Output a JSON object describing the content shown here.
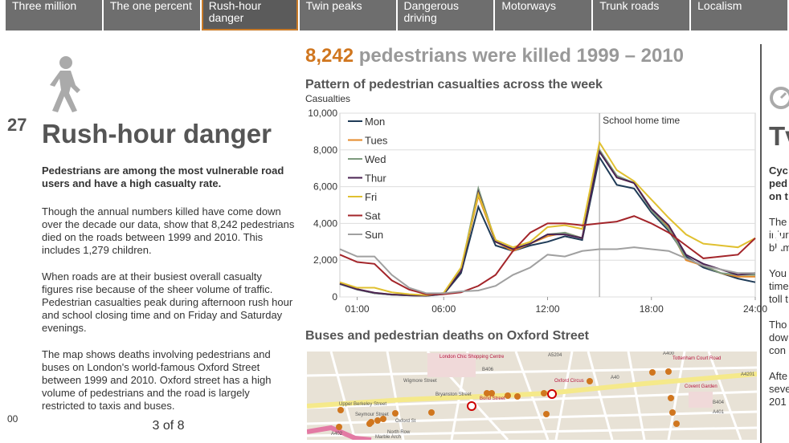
{
  "tabs": [
    "Three million",
    "The one percent",
    "Rush-hour danger",
    "Twin peaks",
    "Dangerous driving",
    "Motorways",
    "Trunk roads",
    "Localism"
  ],
  "active_tab": "Rush-hour danger",
  "left_panel": {
    "title": "Rush-hour danger",
    "lead": "Pedestrians are among the most vulnerable road users and have a high casualty rate.",
    "p1": "Though the annual numbers killed have come down over the decade our data, show that 8,242 pedestrians died on the roads between 1999 and 2010. This includes 1,279 children.",
    "p2": "When roads are at their busiest overall casualty figures rise because of the sheer volume of traffic. Pedestrian casualties peak during afternoon rush hour and school closing time and on Friday and Saturday evenings.",
    "p3": "The map shows deaths involving pedestrians and buses on London's world-famous Oxford Street between 1999 and 2010. Oxford street has a high volume of pedestrians and the road is largely restricted to taxis and buses.",
    "pager": "3 of 8"
  },
  "headline": {
    "number": "8,242",
    "rest": "pedestrians were killed 1999 – 2010"
  },
  "map_title": "Buses and pedestrian deaths on Oxford Street",
  "peek_left_text": "27",
  "peek_left_axis": "00",
  "peek_right_title": "Tv",
  "peek_right_lines": [
    "Cyc",
    "ped",
    "on t",
    "The",
    "injur",
    "blam",
    "You",
    "time",
    "toll t",
    "Tho",
    "dow",
    "con",
    "Afte",
    "seve",
    "201"
  ],
  "map_labels": [
    "London Chic Shopping Centre",
    "Oxford Circus",
    "Bond Street",
    "Tottenham Court Road",
    "Covent Garden",
    "Marble Arch",
    "North Row",
    "Oxford St",
    "A5204",
    "A40",
    "A400",
    "B406",
    "A4201",
    "A401",
    "B404",
    "A402",
    "Upper Berkeley Street",
    "Wigmore Street",
    "Seymour Street",
    "Bryanston Street"
  ],
  "colors": {
    "accent": "#d0761e",
    "tab_bg": "#6e6e6e",
    "stage_bg": "#595959"
  },
  "chart_data": {
    "type": "line",
    "title": "Pattern of pedestrian casualties across the week",
    "ylabel": "Casualties",
    "ylim": [
      0,
      10000
    ],
    "yticks": [
      "0",
      "2,000",
      "4,000",
      "6,000",
      "8,000",
      "10,000"
    ],
    "x": [
      "00:00",
      "01:00",
      "02:00",
      "03:00",
      "04:00",
      "05:00",
      "06:00",
      "07:00",
      "08:00",
      "09:00",
      "10:00",
      "11:00",
      "12:00",
      "13:00",
      "14:00",
      "15:00",
      "16:00",
      "17:00",
      "18:00",
      "19:00",
      "20:00",
      "21:00",
      "22:00",
      "23:00",
      "24:00"
    ],
    "xticks": [
      "01:00",
      "06:00",
      "12:00",
      "18:00",
      "24:00"
    ],
    "annotation": {
      "label": "School home time",
      "x": "15:00"
    },
    "series": [
      {
        "name": "Mon",
        "color": "#1f3b57",
        "values": [
          700,
          400,
          200,
          120,
          80,
          60,
          150,
          1300,
          4900,
          2800,
          2500,
          2800,
          3000,
          3300,
          3100,
          7600,
          6100,
          5900,
          4600,
          3600,
          2200,
          1600,
          1300,
          1000,
          800
        ]
      },
      {
        "name": "Tues",
        "color": "#e48a2a",
        "values": [
          750,
          420,
          220,
          130,
          90,
          70,
          180,
          1500,
          5500,
          3000,
          2500,
          2900,
          3300,
          3500,
          3200,
          8000,
          6500,
          6200,
          4800,
          3800,
          2000,
          1700,
          1300,
          1100,
          1100
        ]
      },
      {
        "name": "Wed",
        "color": "#7d9a7e",
        "values": [
          720,
          410,
          210,
          120,
          85,
          65,
          170,
          1500,
          5900,
          3000,
          2600,
          2900,
          3400,
          3500,
          3200,
          8000,
          6600,
          6200,
          4700,
          3700,
          2100,
          1700,
          1300,
          1200,
          1200
        ]
      },
      {
        "name": "Thur",
        "color": "#4a2352",
        "values": [
          730,
          420,
          230,
          130,
          90,
          70,
          170,
          1400,
          5700,
          3000,
          2600,
          2900,
          3400,
          3400,
          3200,
          7900,
          6500,
          6200,
          4800,
          3900,
          2300,
          1800,
          1500,
          1200,
          1300
        ]
      },
      {
        "name": "Fri",
        "color": "#e0c030",
        "values": [
          800,
          500,
          500,
          250,
          150,
          100,
          220,
          1600,
          5600,
          3100,
          2700,
          3000,
          3800,
          3900,
          3700,
          8400,
          6900,
          6300,
          5300,
          4300,
          3400,
          2900,
          2800,
          2700,
          3200
        ]
      },
      {
        "name": "Sat",
        "color": "#a3252a",
        "values": [
          2300,
          1900,
          1800,
          900,
          400,
          150,
          150,
          250,
          600,
          1200,
          2500,
          3500,
          4000,
          4000,
          3900,
          4000,
          4100,
          4400,
          4000,
          3500,
          2800,
          2100,
          2200,
          2300,
          3200
        ]
      },
      {
        "name": "Sun",
        "color": "#a0a0a0",
        "values": [
          2600,
          2200,
          2200,
          1200,
          500,
          200,
          200,
          300,
          350,
          600,
          1200,
          1600,
          2300,
          2200,
          2500,
          2600,
          2600,
          2700,
          2600,
          2500,
          2100,
          1700,
          1500,
          1300,
          1300
        ]
      }
    ]
  }
}
